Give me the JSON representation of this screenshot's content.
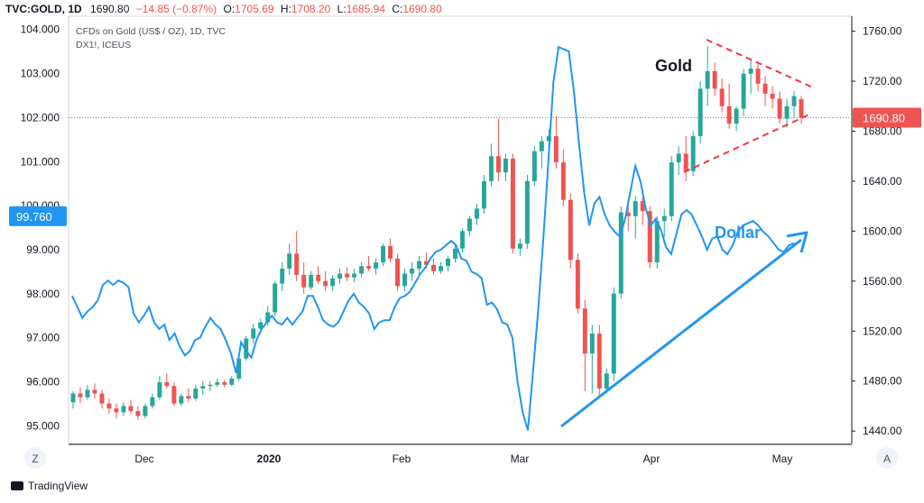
{
  "header": {
    "symbol": "TVC:GOLD, 1D",
    "last": "1690.80",
    "change": "−14.85 (−0.87%)",
    "o_label": "O:",
    "o": "1705.69",
    "h_label": "H:",
    "h": "1708.20",
    "l_label": "L:",
    "l": "1685.94",
    "c_label": "C:",
    "c": "1690.80",
    "series1": "CFDs on Gold (US$ / OZ), 1D, TVC",
    "series2": "DX1!, ICEUS"
  },
  "colors": {
    "up": "#26a69a",
    "down": "#ef5350",
    "dollar": "#2196f3",
    "triangle": "#f23645",
    "price_line": "#ef5350",
    "dollar_badge": "#2196f3"
  },
  "footer": {
    "brand": "TradingView"
  },
  "corner_left": "Z",
  "corner_right": "A",
  "chart_data": {
    "type": "candlestick+line",
    "x_tick_labels": [
      "Dec",
      "2020",
      "Feb",
      "Mar",
      "Apr",
      "May"
    ],
    "left_axis": {
      "series": "DX1!",
      "ylim": [
        94.6,
        104.3
      ],
      "ticks": [
        "95.000",
        "96.000",
        "97.000",
        "98.000",
        "99.000",
        "100.000",
        "101.000",
        "102.000",
        "103.000",
        "104.000"
      ],
      "current": "99.760"
    },
    "right_axis": {
      "series": "TVC:GOLD",
      "ylim": [
        1430,
        1772
      ],
      "ticks": [
        "1440.00",
        "1480.00",
        "1520.00",
        "1560.00",
        "1600.00",
        "1640.00",
        "1680.00",
        "1720.00",
        "1760.00"
      ],
      "current": "1690.80"
    },
    "annotations": {
      "gold": "Gold",
      "dollar": "Dollar"
    },
    "gold_ohlc": [
      [
        1463,
        1472,
        1458,
        1470
      ],
      [
        1470,
        1475,
        1462,
        1467
      ],
      [
        1467,
        1477,
        1465,
        1473
      ],
      [
        1473,
        1478,
        1466,
        1470
      ],
      [
        1470,
        1473,
        1458,
        1462
      ],
      [
        1462,
        1466,
        1454,
        1458
      ],
      [
        1458,
        1462,
        1450,
        1455
      ],
      [
        1455,
        1463,
        1452,
        1460
      ],
      [
        1460,
        1465,
        1454,
        1456
      ],
      [
        1456,
        1460,
        1449,
        1452
      ],
      [
        1452,
        1462,
        1450,
        1460
      ],
      [
        1460,
        1470,
        1458,
        1467
      ],
      [
        1467,
        1484,
        1465,
        1479
      ],
      [
        1479,
        1486,
        1474,
        1476
      ],
      [
        1476,
        1479,
        1460,
        1462
      ],
      [
        1462,
        1470,
        1460,
        1468
      ],
      [
        1468,
        1474,
        1463,
        1466
      ],
      [
        1466,
        1477,
        1464,
        1474
      ],
      [
        1474,
        1480,
        1469,
        1476
      ],
      [
        1476,
        1480,
        1472,
        1477
      ],
      [
        1477,
        1482,
        1475,
        1479
      ],
      [
        1479,
        1481,
        1475,
        1477
      ],
      [
        1477,
        1484,
        1476,
        1482
      ],
      [
        1482,
        1500,
        1480,
        1498
      ],
      [
        1498,
        1516,
        1496,
        1514
      ],
      [
        1514,
        1526,
        1510,
        1522
      ],
      [
        1522,
        1530,
        1518,
        1527
      ],
      [
        1527,
        1540,
        1524,
        1535
      ],
      [
        1535,
        1560,
        1532,
        1558
      ],
      [
        1558,
        1575,
        1552,
        1570
      ],
      [
        1570,
        1590,
        1565,
        1582
      ],
      [
        1582,
        1600,
        1560,
        1565
      ],
      [
        1565,
        1575,
        1550,
        1555
      ],
      [
        1555,
        1568,
        1553,
        1565
      ],
      [
        1565,
        1572,
        1558,
        1560
      ],
      [
        1560,
        1568,
        1552,
        1556
      ],
      [
        1556,
        1565,
        1552,
        1562
      ],
      [
        1562,
        1570,
        1558,
        1566
      ],
      [
        1566,
        1571,
        1560,
        1563
      ],
      [
        1563,
        1570,
        1559,
        1566
      ],
      [
        1566,
        1575,
        1563,
        1572
      ],
      [
        1572,
        1580,
        1568,
        1570
      ],
      [
        1570,
        1578,
        1565,
        1575
      ],
      [
        1575,
        1590,
        1572,
        1588
      ],
      [
        1588,
        1594,
        1575,
        1578
      ],
      [
        1578,
        1582,
        1552,
        1556
      ],
      [
        1556,
        1570,
        1552,
        1566
      ],
      [
        1566,
        1575,
        1560,
        1570
      ],
      [
        1570,
        1580,
        1565,
        1576
      ],
      [
        1576,
        1583,
        1570,
        1573
      ],
      [
        1573,
        1578,
        1565,
        1568
      ],
      [
        1568,
        1575,
        1566,
        1572
      ],
      [
        1572,
        1580,
        1568,
        1578
      ],
      [
        1578,
        1590,
        1575,
        1586
      ],
      [
        1586,
        1602,
        1583,
        1600
      ],
      [
        1600,
        1612,
        1596,
        1610
      ],
      [
        1610,
        1622,
        1605,
        1618
      ],
      [
        1618,
        1645,
        1614,
        1640
      ],
      [
        1640,
        1670,
        1636,
        1660
      ],
      [
        1660,
        1690,
        1640,
        1647
      ],
      [
        1647,
        1662,
        1640,
        1658
      ],
      [
        1658,
        1662,
        1582,
        1586
      ],
      [
        1586,
        1594,
        1580,
        1590
      ],
      [
        1590,
        1645,
        1586,
        1640
      ],
      [
        1640,
        1668,
        1636,
        1664
      ],
      [
        1664,
        1676,
        1650,
        1672
      ],
      [
        1672,
        1682,
        1660,
        1676
      ],
      [
        1676,
        1692,
        1650,
        1655
      ],
      [
        1655,
        1665,
        1620,
        1625
      ],
      [
        1625,
        1630,
        1570,
        1577
      ],
      [
        1577,
        1582,
        1534,
        1538
      ],
      [
        1538,
        1545,
        1472,
        1502
      ],
      [
        1502,
        1525,
        1470,
        1518
      ],
      [
        1518,
        1525,
        1468,
        1474
      ],
      [
        1474,
        1490,
        1470,
        1486
      ],
      [
        1486,
        1555,
        1480,
        1550
      ],
      [
        1550,
        1620,
        1546,
        1615
      ],
      [
        1615,
        1625,
        1600,
        1612
      ],
      [
        1612,
        1628,
        1594,
        1624
      ],
      [
        1624,
        1628,
        1605,
        1616
      ],
      [
        1616,
        1620,
        1570,
        1575
      ],
      [
        1575,
        1612,
        1570,
        1608
      ],
      [
        1608,
        1618,
        1595,
        1612
      ],
      [
        1612,
        1660,
        1608,
        1655
      ],
      [
        1655,
        1668,
        1645,
        1662
      ],
      [
        1662,
        1676,
        1640,
        1648
      ],
      [
        1648,
        1680,
        1644,
        1676
      ],
      [
        1676,
        1720,
        1670,
        1714
      ],
      [
        1714,
        1748,
        1700,
        1728
      ],
      [
        1728,
        1735,
        1708,
        1714
      ],
      [
        1714,
        1722,
        1695,
        1700
      ],
      [
        1700,
        1718,
        1682,
        1686
      ],
      [
        1686,
        1700,
        1680,
        1698
      ],
      [
        1698,
        1730,
        1692,
        1726
      ],
      [
        1726,
        1738,
        1710,
        1730
      ],
      [
        1730,
        1735,
        1712,
        1718
      ],
      [
        1718,
        1724,
        1700,
        1710
      ],
      [
        1710,
        1716,
        1698,
        1706
      ],
      [
        1706,
        1712,
        1686,
        1690
      ],
      [
        1690,
        1706,
        1683,
        1700
      ],
      [
        1700,
        1712,
        1690,
        1708
      ],
      [
        1705.69,
        1708.2,
        1685.94,
        1690.8
      ]
    ],
    "dollar_line": [
      [
        0,
        97.95
      ],
      [
        5,
        97.7
      ],
      [
        10,
        97.45
      ],
      [
        15,
        97.6
      ],
      [
        20,
        97.7
      ],
      [
        25,
        97.85
      ],
      [
        30,
        98.2
      ],
      [
        35,
        98.3
      ],
      [
        40,
        98.2
      ],
      [
        45,
        98.3
      ],
      [
        50,
        98.25
      ],
      [
        55,
        98.15
      ],
      [
        60,
        97.55
      ],
      [
        65,
        97.35
      ],
      [
        70,
        97.5
      ],
      [
        75,
        97.7
      ],
      [
        80,
        97.35
      ],
      [
        85,
        97.2
      ],
      [
        90,
        97.3
      ],
      [
        95,
        96.95
      ],
      [
        100,
        97.1
      ],
      [
        105,
        96.8
      ],
      [
        110,
        96.6
      ],
      [
        115,
        96.7
      ],
      [
        120,
        96.95
      ],
      [
        125,
        97.0
      ],
      [
        130,
        97.25
      ],
      [
        135,
        97.45
      ],
      [
        140,
        97.3
      ],
      [
        145,
        97.2
      ],
      [
        150,
        96.95
      ],
      [
        155,
        96.65
      ],
      [
        160,
        96.2
      ],
      [
        165,
        96.9
      ],
      [
        170,
        96.7
      ],
      [
        175,
        96.55
      ],
      [
        180,
        96.95
      ],
      [
        185,
        97.2
      ],
      [
        190,
        97.35
      ],
      [
        195,
        97.5
      ],
      [
        200,
        97.35
      ],
      [
        205,
        97.3
      ],
      [
        210,
        97.45
      ],
      [
        215,
        97.3
      ],
      [
        220,
        97.45
      ],
      [
        225,
        97.6
      ],
      [
        230,
        97.95
      ],
      [
        235,
        97.95
      ],
      [
        240,
        97.7
      ],
      [
        245,
        97.4
      ],
      [
        250,
        97.3
      ],
      [
        255,
        97.25
      ],
      [
        260,
        97.35
      ],
      [
        265,
        97.6
      ],
      [
        270,
        97.85
      ],
      [
        275,
        98.0
      ],
      [
        280,
        97.8
      ],
      [
        285,
        97.7
      ],
      [
        290,
        97.55
      ],
      [
        295,
        97.2
      ],
      [
        300,
        97.35
      ],
      [
        305,
        97.4
      ],
      [
        310,
        97.4
      ],
      [
        315,
        97.7
      ],
      [
        320,
        97.9
      ],
      [
        325,
        97.95
      ],
      [
        330,
        98.05
      ],
      [
        335,
        98.25
      ],
      [
        340,
        98.45
      ],
      [
        345,
        98.6
      ],
      [
        350,
        98.8
      ],
      [
        355,
        98.95
      ],
      [
        360,
        99.0
      ],
      [
        365,
        99.1
      ],
      [
        370,
        99.2
      ],
      [
        375,
        99.1
      ],
      [
        380,
        98.8
      ],
      [
        385,
        98.75
      ],
      [
        390,
        98.5
      ],
      [
        395,
        98.45
      ],
      [
        400,
        98.35
      ],
      [
        405,
        97.75
      ],
      [
        410,
        97.8
      ],
      [
        415,
        97.65
      ],
      [
        420,
        97.35
      ],
      [
        425,
        97.3
      ],
      [
        430,
        97.0
      ],
      [
        435,
        96.0
      ],
      [
        440,
        95.3
      ],
      [
        445,
        94.9
      ],
      [
        450,
        96.2
      ],
      [
        455,
        97.6
      ],
      [
        460,
        99.2
      ],
      [
        465,
        101.0
      ],
      [
        470,
        102.8
      ],
      [
        475,
        103.6
      ],
      [
        480,
        103.55
      ],
      [
        485,
        103.5
      ],
      [
        490,
        102.6
      ],
      [
        495,
        101.4
      ],
      [
        500,
        100.3
      ],
      [
        505,
        99.55
      ],
      [
        510,
        100.05
      ],
      [
        515,
        100.2
      ],
      [
        520,
        99.8
      ],
      [
        525,
        99.55
      ],
      [
        530,
        99.4
      ],
      [
        535,
        99.3
      ],
      [
        540,
        99.7
      ],
      [
        545,
        100.3
      ],
      [
        550,
        100.9
      ],
      [
        555,
        100.55
      ],
      [
        560,
        99.95
      ],
      [
        565,
        99.55
      ],
      [
        570,
        99.7
      ],
      [
        575,
        99.45
      ],
      [
        580,
        99.05
      ],
      [
        585,
        98.9
      ],
      [
        590,
        99.35
      ],
      [
        595,
        99.8
      ],
      [
        600,
        99.9
      ],
      [
        605,
        99.8
      ],
      [
        610,
        99.55
      ],
      [
        615,
        99.3
      ],
      [
        620,
        99.0
      ],
      [
        625,
        99.25
      ],
      [
        630,
        99.3
      ],
      [
        635,
        99.0
      ],
      [
        640,
        98.9
      ],
      [
        645,
        99.1
      ],
      [
        650,
        99.4
      ],
      [
        655,
        99.55
      ],
      [
        660,
        99.6
      ],
      [
        665,
        99.65
      ],
      [
        670,
        99.55
      ],
      [
        675,
        99.4
      ],
      [
        680,
        99.3
      ],
      [
        685,
        99.15
      ],
      [
        690,
        99.0
      ],
      [
        695,
        98.95
      ],
      [
        700,
        99.1
      ],
      [
        705,
        99.15
      ]
    ],
    "grid": false
  }
}
